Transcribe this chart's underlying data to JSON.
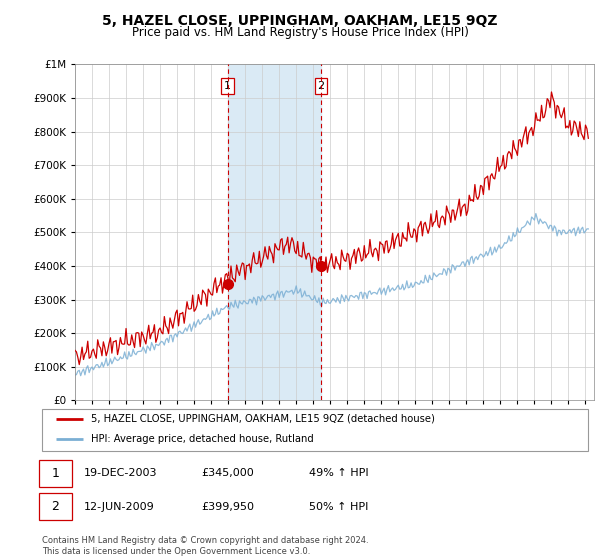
{
  "title": "5, HAZEL CLOSE, UPPINGHAM, OAKHAM, LE15 9QZ",
  "subtitle": "Price paid vs. HM Land Registry's House Price Index (HPI)",
  "legend_line1": "5, HAZEL CLOSE, UPPINGHAM, OAKHAM, LE15 9QZ (detached house)",
  "legend_line2": "HPI: Average price, detached house, Rutland",
  "table_row1_date": "19-DEC-2003",
  "table_row1_price": "£345,000",
  "table_row1_hpi": "49% ↑ HPI",
  "table_row2_date": "12-JUN-2009",
  "table_row2_price": "£399,950",
  "table_row2_hpi": "50% ↑ HPI",
  "footer": "Contains HM Land Registry data © Crown copyright and database right 2024.\nThis data is licensed under the Open Government Licence v3.0.",
  "sale1_year": 2003.97,
  "sale1_price": 345000,
  "sale2_year": 2009.45,
  "sale2_price": 399950,
  "vline1_year": 2003.97,
  "vline2_year": 2009.45,
  "hpi_color": "#7bafd4",
  "price_color": "#cc0000",
  "vline_color": "#cc0000",
  "highlight_color": "#daeaf5",
  "background_color": "#ffffff",
  "ylim_top": 1000000,
  "ylim_bottom": 0,
  "xmin": 1995,
  "xmax": 2025.5,
  "ytick_interval": 100000
}
